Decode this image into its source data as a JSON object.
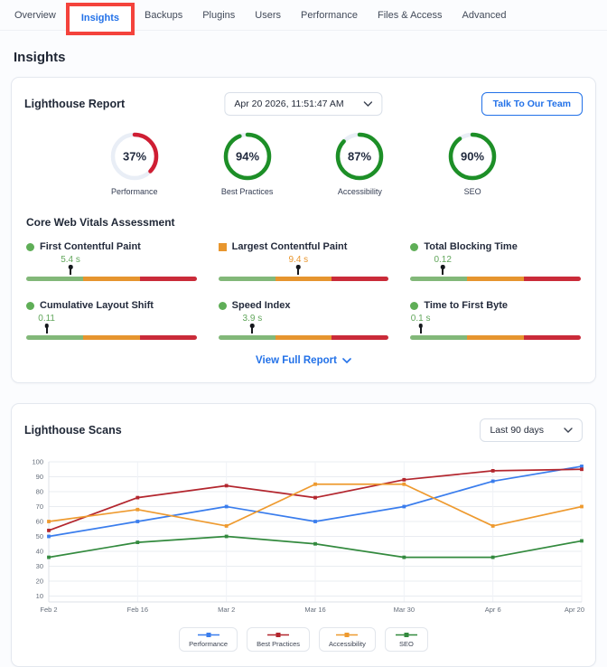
{
  "nav": {
    "tabs": [
      {
        "label": "Overview",
        "active": false,
        "annotated": false
      },
      {
        "label": "Insights",
        "active": true,
        "annotated": true
      },
      {
        "label": "Backups",
        "active": false,
        "annotated": false
      },
      {
        "label": "Plugins",
        "active": false,
        "annotated": false
      },
      {
        "label": "Users",
        "active": false,
        "annotated": false
      },
      {
        "label": "Performance",
        "active": false,
        "annotated": false
      },
      {
        "label": "Files & Access",
        "active": false,
        "annotated": false
      },
      {
        "label": "Advanced",
        "active": false,
        "annotated": false
      }
    ],
    "annotation_color": "#f4433c"
  },
  "page_title": "Insights",
  "lighthouse_report": {
    "title": "Lighthouse Report",
    "date_dropdown_value": "Apr 20 2026, 11:51:47 AM",
    "talk_button_label": "Talk To Our Team",
    "gauges": [
      {
        "label": "Performance",
        "percent": 37,
        "color": "#cf1e33"
      },
      {
        "label": "Best Practices",
        "percent": 94,
        "color": "#1d8f27"
      },
      {
        "label": "Accessibility",
        "percent": 87,
        "color": "#1d8f27"
      },
      {
        "label": "SEO",
        "percent": 90,
        "color": "#1d8f27"
      }
    ],
    "vitals_title": "Core Web Vitals Assessment",
    "vitals": [
      {
        "label": "First Contentful Paint",
        "value": "5.4 s",
        "indicator": "circle",
        "indicator_color": "#5fae57",
        "value_color": "#61a65b",
        "marker_percent": 26
      },
      {
        "label": "Largest Contentful Paint",
        "value": "9.4 s",
        "indicator": "square",
        "indicator_color": "#e8962e",
        "value_color": "#e8962e",
        "marker_percent": 47
      },
      {
        "label": "Total Blocking Time",
        "value": "0.12",
        "indicator": "circle",
        "indicator_color": "#5fae57",
        "value_color": "#61a65b",
        "marker_percent": 19
      },
      {
        "label": "Cumulative Layout Shift",
        "value": "0.11",
        "indicator": "circle",
        "indicator_color": "#5fae57",
        "value_color": "#61a65b",
        "marker_percent": 12
      },
      {
        "label": "Speed Index",
        "value": "3.9 s",
        "indicator": "circle",
        "indicator_color": "#5fae57",
        "value_color": "#61a65b",
        "marker_percent": 20
      },
      {
        "label": "Time to First Byte",
        "value": "0.1 s",
        "indicator": "circle",
        "indicator_color": "#5fae57",
        "value_color": "#61a65b",
        "marker_percent": 6
      }
    ],
    "bar_colors": {
      "good": "#82b879",
      "average": "#e6952f",
      "poor": "#ca2b39"
    },
    "view_full_report_label": "View Full Report"
  },
  "lighthouse_scans": {
    "title": "Lighthouse Scans",
    "range_dropdown_value": "Last 90 days"
  },
  "chart_data": {
    "type": "line",
    "title": "Lighthouse Scans",
    "x": [
      "Feb 2",
      "Feb 16",
      "Mar 2",
      "Mar 16",
      "Mar 30",
      "Apr 6",
      "Apr 20"
    ],
    "series": [
      {
        "name": "Performance",
        "color": "#3a7ded",
        "values": [
          50,
          60,
          70,
          60,
          70,
          87,
          97
        ]
      },
      {
        "name": "Best Practices",
        "color": "#b3262e",
        "values": [
          54,
          76,
          84,
          76,
          88,
          94,
          95
        ]
      },
      {
        "name": "Accessibility",
        "color": "#ee9a2f",
        "values": [
          60,
          68,
          57,
          85,
          85,
          57,
          70
        ]
      },
      {
        "name": "SEO",
        "color": "#338a3e",
        "values": [
          36,
          46,
          50,
          45,
          36,
          36,
          47
        ]
      }
    ],
    "y_ticks": [
      10,
      20,
      30,
      40,
      50,
      60,
      70,
      80,
      90,
      100
    ],
    "ylim": [
      10,
      100
    ],
    "grid": true,
    "legend_position": "bottom"
  }
}
